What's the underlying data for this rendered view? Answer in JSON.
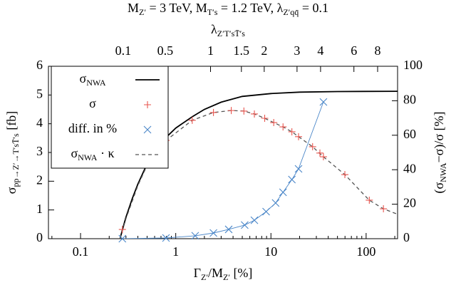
{
  "chart_data": {
    "type": "line",
    "title": [
      {
        "text": "M"
      },
      {
        "sub": "Z′"
      },
      {
        "text": " = 3 TeV, M"
      },
      {
        "sub": "T′s"
      },
      {
        "text": " = 1.2 TeV, λ"
      },
      {
        "sub": "Z′qq̄"
      },
      {
        "text": " = 0.1"
      }
    ],
    "x_label": [
      {
        "text": "Γ"
      },
      {
        "sub": "Z′"
      },
      {
        "text": "/M"
      },
      {
        "sub": "Z′"
      },
      {
        "text": "  [%]"
      }
    ],
    "y_label": [
      {
        "text": "σ"
      },
      {
        "sub": "pp→Z′→T′sT̄′s"
      },
      {
        "text": " [fb]"
      }
    ],
    "y2_label": [
      {
        "text": "(σ"
      },
      {
        "sub": "NWA"
      },
      {
        "text": "−σ)/σ  [%]"
      }
    ],
    "x_scale": "log",
    "xlim": [
      0.046,
      214
    ],
    "xticks": [
      0.1,
      1,
      10,
      100
    ],
    "ylim": [
      0,
      6
    ],
    "yticks": [
      0,
      1,
      2,
      3,
      4,
      5,
      6
    ],
    "y2lim": [
      0,
      100
    ],
    "y2ticks": [
      0,
      20,
      40,
      60,
      80,
      100
    ],
    "x2_axis": {
      "label": [
        {
          "text": "λ"
        },
        {
          "sub": "Z′T′sT̄′s"
        }
      ],
      "ticks": [
        0.1,
        0.5,
        1,
        1.5,
        2,
        3,
        4,
        6,
        8
      ],
      "relation": {
        "offset": 0.26,
        "slope": 2.06
      }
    },
    "grid": false,
    "legend": "upper left",
    "series": [
      {
        "name": [
          {
            "text": "σ"
          },
          {
            "sub": "NWA"
          }
        ],
        "color": "#000000",
        "style": "line",
        "x": [
          0.26,
          0.28,
          0.3,
          0.35,
          0.4,
          0.5,
          0.6,
          0.75,
          1,
          1.5,
          2,
          3,
          5,
          10,
          20,
          50,
          214
        ],
        "values": [
          0,
          0.4,
          0.75,
          1.4,
          1.9,
          2.6,
          3.0,
          3.45,
          3.85,
          4.25,
          4.5,
          4.75,
          4.95,
          5.05,
          5.1,
          5.12,
          5.13
        ]
      },
      {
        "name": [
          {
            "text": "σ"
          }
        ],
        "color": "#e8554e",
        "style": "plus",
        "x": [
          0.275,
          0.79,
          1.49,
          2.49,
          3.83,
          5.2,
          6.7,
          8.6,
          10.7,
          13.4,
          16.6,
          19.5,
          27.4,
          32.7,
          35.6,
          59.8,
          108,
          152
        ],
        "values": [
          0.32,
          3.42,
          4.12,
          4.39,
          4.46,
          4.44,
          4.34,
          4.19,
          4.04,
          3.89,
          3.72,
          3.55,
          3.2,
          2.98,
          2.85,
          2.23,
          1.34,
          1.04
        ]
      },
      {
        "name": [
          {
            "text": "diff. in %"
          }
        ],
        "color": "#4a86c8",
        "style": "cross",
        "axis": "y2",
        "x": [
          0.275,
          0.79,
          1.6,
          2.49,
          3.6,
          5.3,
          6.7,
          8.9,
          11.2,
          13.4,
          16.6,
          19.5,
          35.6
        ],
        "values": [
          0,
          0.4,
          1.7,
          3.3,
          5.4,
          7.9,
          10.7,
          15.7,
          20.7,
          26.9,
          34.3,
          40.5,
          79.3
        ]
      },
      {
        "name": [
          {
            "text": "σ"
          },
          {
            "sub": "NWA"
          },
          {
            "text": " · κ"
          }
        ],
        "color": "#555555",
        "style": "dashed",
        "x": [
          0.26,
          0.3,
          0.4,
          0.5,
          0.79,
          1.49,
          2.49,
          3.83,
          5.2,
          6.7,
          8.6,
          10.7,
          13.4,
          16.6,
          19.5,
          27.4,
          35.6,
          59.8,
          108,
          152,
          214
        ],
        "values": [
          0,
          0.7,
          1.85,
          2.55,
          3.42,
          4.12,
          4.39,
          4.46,
          4.44,
          4.34,
          4.19,
          4.04,
          3.89,
          3.72,
          3.55,
          3.2,
          2.85,
          2.23,
          1.34,
          1.04,
          0.85
        ]
      }
    ]
  }
}
